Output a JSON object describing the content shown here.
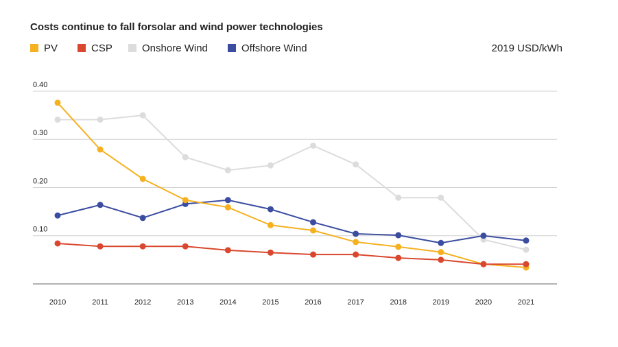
{
  "chart_data": {
    "type": "line",
    "title": "Costs continue to fall forsolar and wind power technologies",
    "unit_label": "2019 USD/kWh",
    "categories": [
      "2010",
      "2011",
      "2012",
      "2013",
      "2014",
      "2015",
      "2016",
      "2017",
      "2018",
      "2019",
      "2020",
      "2021"
    ],
    "series": [
      {
        "name": "PV",
        "color": "#f5b120",
        "values": [
          0.376,
          0.279,
          0.218,
          0.174,
          0.159,
          0.122,
          0.111,
          0.087,
          0.077,
          0.066,
          0.041,
          0.034
        ]
      },
      {
        "name": "CSP",
        "color": "#d9482e",
        "values": [
          0.084,
          0.078,
          0.078,
          0.078,
          0.07,
          0.065,
          0.061,
          0.061,
          0.054,
          0.05,
          0.041,
          0.041
        ]
      },
      {
        "name": "Onshore Wind",
        "color": "#dcdcdc",
        "values": [
          0.341,
          0.341,
          0.35,
          0.263,
          0.236,
          0.246,
          0.287,
          0.248,
          0.179,
          0.179,
          0.092,
          0.071
        ]
      },
      {
        "name": "Offshore Wind",
        "color": "#3b4da0",
        "values": [
          0.142,
          0.164,
          0.137,
          0.166,
          0.174,
          0.155,
          0.128,
          0.104,
          0.101,
          0.085,
          0.1,
          0.09
        ]
      }
    ],
    "ylim": [
      0,
      0.4
    ],
    "yticks": [
      {
        "value": 0.1,
        "label": "0.10"
      },
      {
        "value": 0.2,
        "label": "0.20"
      },
      {
        "value": 0.3,
        "label": "0.30"
      },
      {
        "value": 0.4,
        "label": "0.40"
      }
    ],
    "grid": true
  }
}
